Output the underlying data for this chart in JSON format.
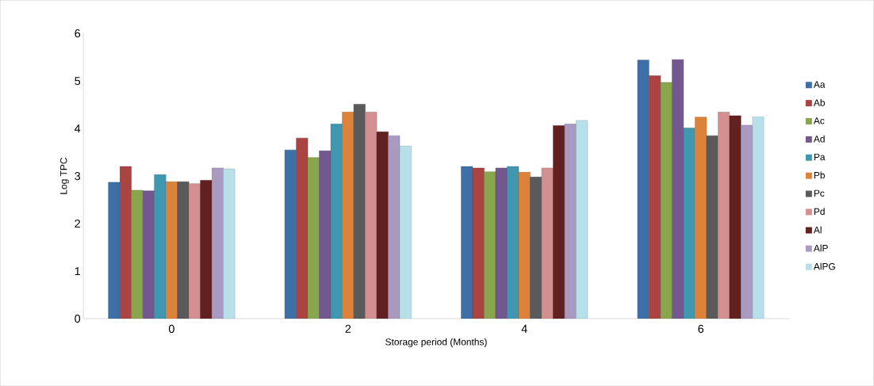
{
  "chart_data": {
    "type": "bar",
    "xlabel": "Storage period (Months)",
    "ylabel": "Log TPC",
    "categories": [
      "0",
      "2",
      "4",
      "6"
    ],
    "series": [
      {
        "name": "Aa",
        "color": "#3e70a8",
        "values": [
          2.87,
          3.55,
          3.2,
          5.44
        ]
      },
      {
        "name": "Ab",
        "color": "#a94442",
        "values": [
          3.2,
          3.8,
          3.17,
          5.11
        ]
      },
      {
        "name": "Ac",
        "color": "#8aa64c",
        "values": [
          2.7,
          3.39,
          3.09,
          4.97
        ]
      },
      {
        "name": "Ad",
        "color": "#735890",
        "values": [
          2.69,
          3.53,
          3.17,
          5.45
        ]
      },
      {
        "name": "Pa",
        "color": "#3f98b0",
        "values": [
          3.03,
          4.1,
          3.2,
          4.01
        ]
      },
      {
        "name": "Pb",
        "color": "#dd823a",
        "values": [
          2.88,
          4.35,
          3.08,
          4.24
        ]
      },
      {
        "name": "Pc",
        "color": "#5a5a5a",
        "values": [
          2.88,
          4.51,
          2.98,
          3.85
        ]
      },
      {
        "name": "Pd",
        "color": "#d49090",
        "values": [
          2.84,
          4.35,
          3.17,
          4.35
        ]
      },
      {
        "name": "Al",
        "color": "#632020",
        "values": [
          2.91,
          3.93,
          4.06,
          4.27
        ]
      },
      {
        "name": "AlP",
        "color": "#a89ac0",
        "values": [
          3.17,
          3.85,
          4.1,
          4.07
        ]
      },
      {
        "name": "AlPG",
        "color": "#b8e0ea",
        "values": [
          3.15,
          3.63,
          4.17,
          4.25
        ]
      }
    ],
    "ylim": [
      0,
      6
    ],
    "yticks": [
      0,
      1,
      2,
      3,
      4,
      5,
      6
    ],
    "grid": false,
    "legend": "right"
  }
}
